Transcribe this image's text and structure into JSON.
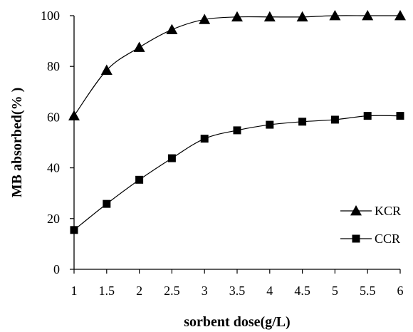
{
  "chart_data": {
    "type": "line",
    "title": "",
    "xlabel": "sorbent dose(g/L)",
    "ylabel": "MB absorbed(% )",
    "x": [
      1,
      1.5,
      2,
      2.5,
      3,
      3.5,
      4,
      4.5,
      5,
      5.5,
      6
    ],
    "xticks": [
      "1",
      "1.5",
      "2",
      "2.5",
      "3",
      "3.5",
      "4",
      "4.5",
      "5",
      "5.5",
      "6"
    ],
    "yticks": [
      "0",
      "20",
      "40",
      "60",
      "80",
      "100"
    ],
    "xlim": [
      1,
      6
    ],
    "ylim": [
      0,
      100
    ],
    "grid": false,
    "legend_position": "bottom-right",
    "series": [
      {
        "name": "KCR",
        "marker": "triangle",
        "color": "#000000",
        "values": [
          60.5,
          78.5,
          87.5,
          94.5,
          98.5,
          99.5,
          99.5,
          99.5,
          100,
          100,
          100
        ]
      },
      {
        "name": "CCR",
        "marker": "square",
        "color": "#000000",
        "values": [
          15.5,
          25.8,
          35.3,
          43.8,
          51.5,
          54.8,
          57,
          58.2,
          59,
          60.5,
          60.5
        ]
      }
    ]
  }
}
